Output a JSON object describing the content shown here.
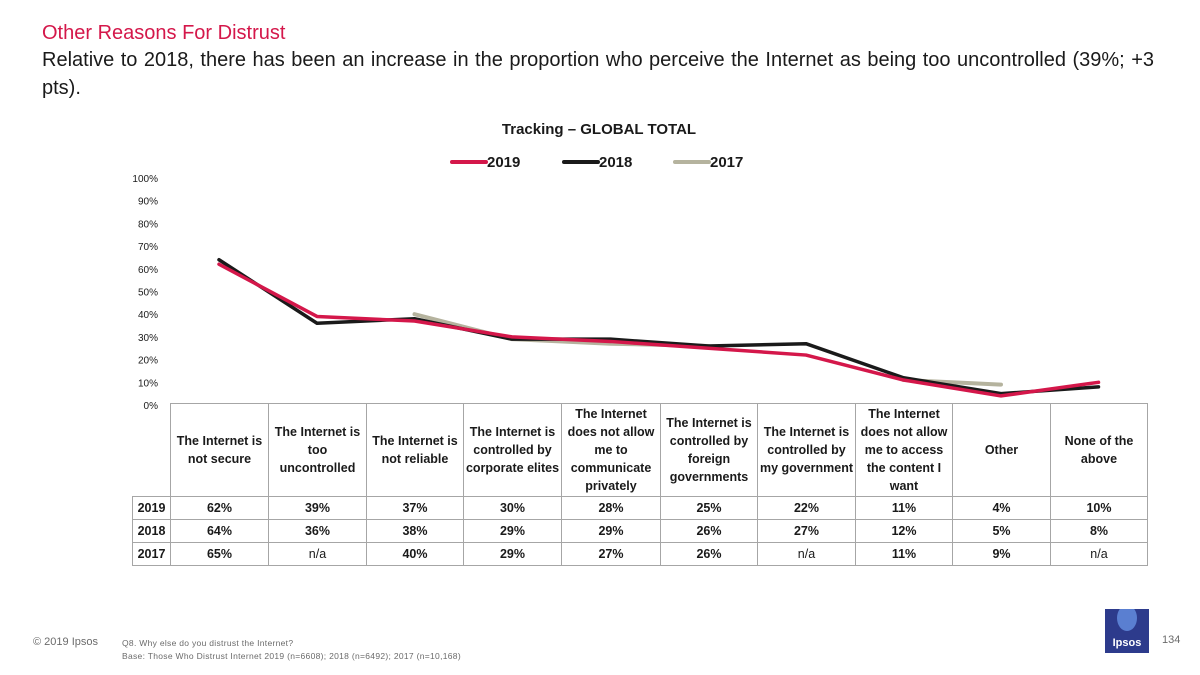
{
  "header": {
    "title": "Other Reasons For Distrust",
    "subtitle": "Relative to 2018, there has been an increase in the proportion who perceive the Internet as being too uncontrolled (39%; +3 pts)."
  },
  "colors": {
    "s2019": "#d4174a",
    "s2018": "#1a1a1a",
    "s2017": "#b5b39e",
    "brand": "#2d3b8c"
  },
  "chart_data": {
    "type": "line",
    "title": "Tracking – GLOBAL TOTAL",
    "xlabel": "",
    "ylabel": "",
    "ylim": [
      0,
      100
    ],
    "yticks": [
      "0%",
      "10%",
      "20%",
      "30%",
      "40%",
      "50%",
      "60%",
      "70%",
      "80%",
      "90%",
      "100%"
    ],
    "legend_position": "top-center",
    "categories": [
      "The Internet is not secure",
      "The Internet is too uncontrolled",
      "The Internet is not reliable",
      "The Internet is controlled by corporate elites",
      "The Internet does not allow me to communicate privately",
      "The Internet is controlled by foreign governments",
      "The Internet is controlled by my government",
      "The Internet does not allow me to access the content I want",
      "Other",
      "None of the above"
    ],
    "series": [
      {
        "name": "2019",
        "color": "#d4174a",
        "values": [
          62,
          39,
          37,
          30,
          28,
          25,
          22,
          11,
          4,
          10
        ],
        "labels": [
          "62%",
          "39%",
          "37%",
          "30%",
          "28%",
          "25%",
          "22%",
          "11%",
          "4%",
          "10%"
        ]
      },
      {
        "name": "2018",
        "color": "#1a1a1a",
        "values": [
          64,
          36,
          38,
          29,
          29,
          26,
          27,
          12,
          5,
          8
        ],
        "labels": [
          "64%",
          "36%",
          "38%",
          "29%",
          "29%",
          "26%",
          "27%",
          "12%",
          "5%",
          "8%"
        ]
      },
      {
        "name": "2017",
        "color": "#b5b39e",
        "values": [
          65,
          null,
          40,
          29,
          27,
          26,
          null,
          11,
          9,
          null
        ],
        "labels": [
          "65%",
          "n/a",
          "40%",
          "29%",
          "27%",
          "26%",
          "n/a",
          "11%",
          "9%",
          "n/a"
        ]
      }
    ]
  },
  "footer": {
    "copyright": "© 2019 Ipsos",
    "question": "Q8.  Why else do you distrust the Internet?",
    "base": "Base: Those Who Distrust Internet 2019 (n=6608); 2018 (n=6492); 2017 (n=10,168)",
    "logo_text": "Ipsos",
    "page_number": "134"
  }
}
